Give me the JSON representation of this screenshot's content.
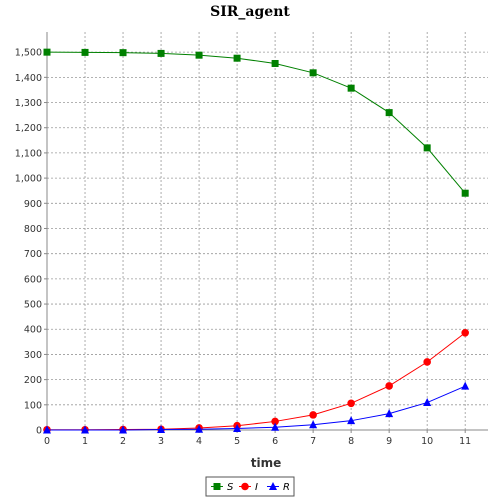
{
  "chart_data": {
    "type": "line",
    "title": "SIR_agent",
    "xlabel": "time",
    "ylabel": "",
    "x": [
      0,
      1,
      2,
      3,
      4,
      5,
      6,
      7,
      8,
      9,
      10,
      11
    ],
    "xlim": [
      0,
      11.6
    ],
    "ylim": [
      0,
      1580
    ],
    "x_ticks": [
      0,
      1,
      2,
      3,
      4,
      5,
      6,
      7,
      8,
      9,
      10,
      11
    ],
    "y_ticks": [
      0,
      100,
      200,
      300,
      400,
      500,
      600,
      700,
      800,
      900,
      1000,
      1100,
      1200,
      1300,
      1400,
      1500
    ],
    "y_tick_labels": [
      "0",
      "100",
      "200",
      "300",
      "400",
      "500",
      "600",
      "700",
      "800",
      "900",
      "1,000",
      "1,100",
      "1,200",
      "1,300",
      "1,400",
      "1,500"
    ],
    "grid": true,
    "legend_position": "bottom",
    "series": [
      {
        "name": "S",
        "color": "#008000",
        "marker": "square",
        "values": [
          1500,
          1499,
          1498,
          1495,
          1488,
          1476,
          1455,
          1418,
          1357,
          1260,
          1120,
          940
        ]
      },
      {
        "name": "I",
        "color": "#ff0000",
        "marker": "circle",
        "values": [
          1,
          1,
          2,
          3,
          8,
          17,
          34,
          60,
          106,
          175,
          270,
          386
        ]
      },
      {
        "name": "R",
        "color": "#0000ff",
        "marker": "triangle",
        "values": [
          0,
          0,
          0,
          2,
          3,
          6,
          11,
          21,
          37,
          65,
          109,
          174
        ]
      }
    ]
  }
}
